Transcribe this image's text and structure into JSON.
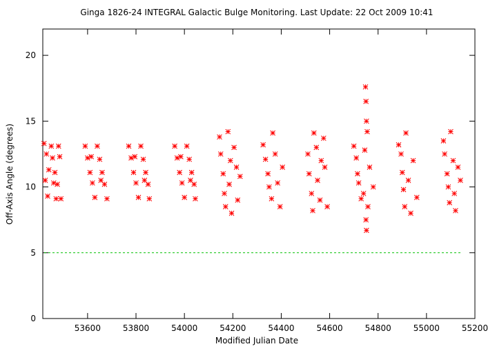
{
  "chart_data": {
    "type": "scatter",
    "title": "Ginga 1826-24   INTEGRAL Galactic Bulge Monitoring.  Last Update: 22 Oct 2009 10:41",
    "x_label": "Modified Julian Date",
    "y_label": "Off-Axis Angle (degrees)",
    "xlim": [
      53415,
      55200
    ],
    "xticks": [
      53600,
      53800,
      54000,
      54200,
      54400,
      54600,
      54800,
      55000,
      55200
    ],
    "ylim": [
      0,
      22
    ],
    "yticks": [
      0,
      5,
      10,
      15,
      20
    ],
    "color": "#ff0000",
    "reference_line": {
      "value": 5,
      "color": "#00c000"
    },
    "x": [
      53420,
      53430,
      53440,
      53425,
      53435,
      53450,
      53455,
      53460,
      53465,
      53470,
      53480,
      53485,
      53475,
      53490,
      53590,
      53600,
      53610,
      53620,
      53630,
      53640,
      53650,
      53660,
      53670,
      53680,
      53615,
      53655,
      53770,
      53780,
      53790,
      53800,
      53810,
      53820,
      53830,
      53840,
      53850,
      53855,
      53795,
      53835,
      53960,
      53970,
      53980,
      53990,
      54000,
      54010,
      54020,
      54030,
      54040,
      54045,
      53985,
      54025,
      54145,
      54150,
      54160,
      54165,
      54170,
      54180,
      54185,
      54190,
      54195,
      54205,
      54215,
      54220,
      54230,
      54325,
      54335,
      54345,
      54350,
      54360,
      54365,
      54375,
      54385,
      54395,
      54405,
      54510,
      54515,
      54525,
      54530,
      54535,
      54545,
      54550,
      54560,
      54565,
      54575,
      54580,
      54590,
      54700,
      54710,
      54715,
      54720,
      54730,
      54748,
      54750,
      54752,
      54755,
      54745,
      54740,
      54758,
      54750,
      54752,
      54765,
      54780,
      54885,
      54895,
      54900,
      54905,
      54910,
      54915,
      54925,
      54935,
      54945,
      54960,
      55070,
      55075,
      55085,
      55090,
      55095,
      55100,
      55110,
      55115,
      55120,
      55130,
      55140
    ],
    "values": [
      13.3,
      12.5,
      11.3,
      10.5,
      9.3,
      13.1,
      12.2,
      10.3,
      11.1,
      9.1,
      13.1,
      12.3,
      10.2,
      9.1,
      13.1,
      12.2,
      11.1,
      10.3,
      9.2,
      13.1,
      12.1,
      11.1,
      10.2,
      9.1,
      12.3,
      10.5,
      13.1,
      12.2,
      11.1,
      10.3,
      9.2,
      13.1,
      12.1,
      11.1,
      10.2,
      9.1,
      12.3,
      10.5,
      13.1,
      12.2,
      11.1,
      10.3,
      9.2,
      13.1,
      12.1,
      11.1,
      10.2,
      9.1,
      12.3,
      10.5,
      13.8,
      12.5,
      11.0,
      9.5,
      8.5,
      14.2,
      10.2,
      12.0,
      8.0,
      13.0,
      11.5,
      9.0,
      10.8,
      13.2,
      12.1,
      11.0,
      10.0,
      9.1,
      14.1,
      12.5,
      10.3,
      8.5,
      11.5,
      12.5,
      11.0,
      9.5,
      8.2,
      14.1,
      13.0,
      10.5,
      9.0,
      12.0,
      13.7,
      11.5,
      8.5,
      13.1,
      12.2,
      11.0,
      10.3,
      9.1,
      17.6,
      16.5,
      15.0,
      14.2,
      12.8,
      9.5,
      8.5,
      7.5,
      6.7,
      11.5,
      10.0,
      13.2,
      12.5,
      11.1,
      9.8,
      8.5,
      14.1,
      10.5,
      8.0,
      12.0,
      9.2,
      13.5,
      12.5,
      11.0,
      10.0,
      8.8,
      14.2,
      12.0,
      9.5,
      8.2,
      11.5,
      10.5
    ]
  }
}
